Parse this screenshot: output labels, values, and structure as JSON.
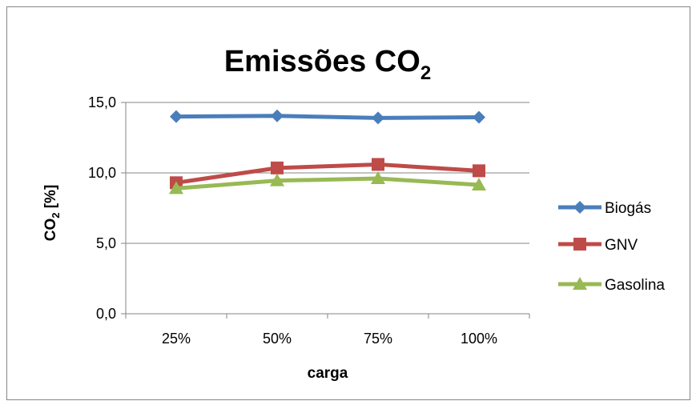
{
  "chart_data": {
    "type": "line",
    "title": "Emissões CO",
    "title_sub": "2",
    "categories": [
      "25%",
      "50%",
      "75%",
      "100%"
    ],
    "xlabel": "carga",
    "ylabel_main": "CO",
    "ylabel_sub": "2",
    "ylabel_unit": " [%]",
    "ylim": [
      0,
      15
    ],
    "yticks": [
      0,
      5,
      10,
      15
    ],
    "ytick_labels": [
      "0,0",
      "5,0",
      "10,0",
      "15,0"
    ],
    "grid": true,
    "legend_position": "right",
    "series": [
      {
        "name": "Biogás",
        "values": [
          14.0,
          14.05,
          13.9,
          13.95
        ],
        "color": "#4a7ebb",
        "marker": "diamond"
      },
      {
        "name": "GNV",
        "values": [
          9.3,
          10.35,
          10.6,
          10.15
        ],
        "color": "#be4b48",
        "marker": "square"
      },
      {
        "name": "Gasolina",
        "values": [
          8.9,
          9.45,
          9.6,
          9.15
        ],
        "color": "#98b954",
        "marker": "triangle"
      }
    ]
  }
}
